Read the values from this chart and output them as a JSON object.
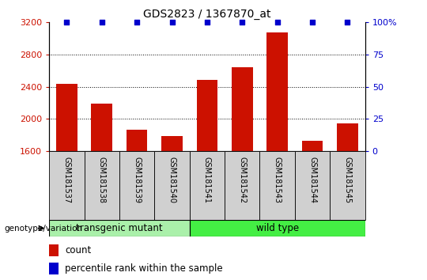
{
  "title": "GDS2823 / 1367870_at",
  "samples": [
    "GSM181537",
    "GSM181538",
    "GSM181539",
    "GSM181540",
    "GSM181541",
    "GSM181542",
    "GSM181543",
    "GSM181544",
    "GSM181545"
  ],
  "counts": [
    2440,
    2190,
    1870,
    1790,
    2490,
    2640,
    3080,
    1730,
    1950
  ],
  "percentile_ranks": [
    100,
    100,
    100,
    100,
    100,
    100,
    100,
    100,
    100
  ],
  "ylim_left": [
    1600,
    3200
  ],
  "ylim_right": [
    0,
    100
  ],
  "yticks_left": [
    1600,
    2000,
    2400,
    2800,
    3200
  ],
  "yticks_right": [
    0,
    25,
    50,
    75,
    100
  ],
  "bar_color": "#cc1100",
  "scatter_color": "#0000cc",
  "group1_label": "transgenic mutant",
  "group2_label": "wild type",
  "group1_color": "#aaf0aa",
  "group2_color": "#44ee44",
  "group1_indices": [
    0,
    1,
    2,
    3
  ],
  "group2_indices": [
    4,
    5,
    6,
    7,
    8
  ],
  "genotype_label": "genotype/variation",
  "legend_count_label": "count",
  "legend_percentile_label": "percentile rank within the sample",
  "xticklabel_bg": "#d0d0d0"
}
